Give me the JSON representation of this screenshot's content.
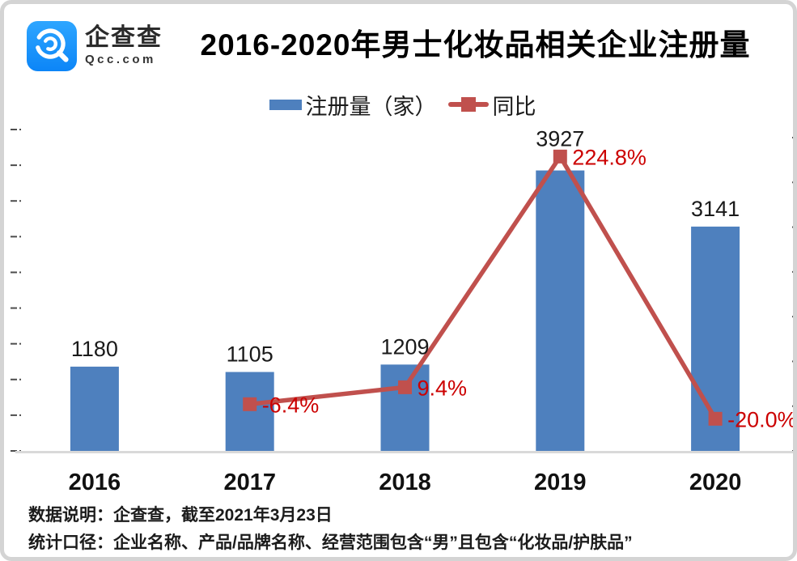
{
  "logo": {
    "name": "企查查",
    "domain": "Qcc.com",
    "color": "#1e9cff"
  },
  "title": "2016-2020年男士化妆品相关企业注册量",
  "footnotes": [
    "数据说明：企查查，截至2021年3月23日",
    "统计口径：企业名称、产品/品牌名称、经营范围包含“男”且包含“化妆品/护肤品”"
  ],
  "chart_data": {
    "type": "bar",
    "categories": [
      "2016",
      "2017",
      "2018",
      "2019",
      "2020"
    ],
    "series": [
      {
        "name": "注册量（家）",
        "type": "bar",
        "color": "#4E80BE",
        "values": [
          1180,
          1105,
          1209,
          3927,
          3141
        ],
        "labels": [
          "1180",
          "1105",
          "1209",
          "3927",
          "3141"
        ]
      },
      {
        "name": "同比",
        "type": "line",
        "color": "#C0504D",
        "label_color": "#CC0000",
        "values": [
          null,
          -6.4,
          9.4,
          224.8,
          -20.0
        ],
        "labels": [
          null,
          "-6.4%",
          "9.4%",
          "224.8%",
          "-20.0%"
        ]
      }
    ],
    "xlabel": "",
    "ylabel": "",
    "y1lim": [
      0,
      4500
    ],
    "y2lim": [
      -50,
      250
    ],
    "gridlines": false,
    "legend_position": "top",
    "axis_line_color": "#D9D9D9",
    "tick_color": "#4d4d4d",
    "value_label_color": "#1a1a1a",
    "x_label_color": "#111111"
  }
}
